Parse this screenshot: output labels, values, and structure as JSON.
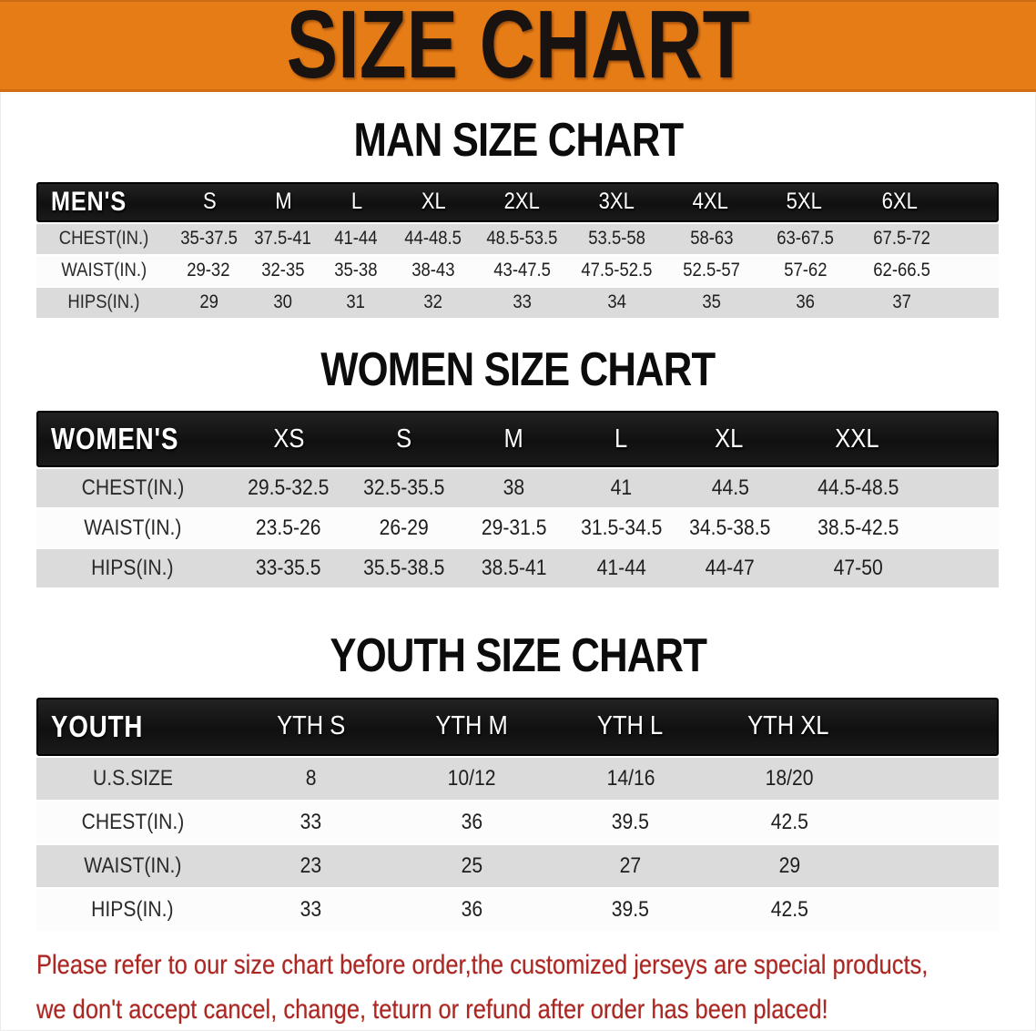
{
  "banner": {
    "title": "SIZE CHART",
    "bg_color": "#E67C16",
    "text_color": "#181310"
  },
  "sections": [
    {
      "title": "MAN SIZE CHART",
      "group_label": "MEN'S",
      "columns": [
        "S",
        "M",
        "L",
        "XL",
        "2XL",
        "3XL",
        "4XL",
        "5XL",
        "6XL"
      ],
      "rows": [
        {
          "label": "CHEST(IN.)",
          "values": [
            "35-37.5",
            "37.5-41",
            "41-44",
            "44-48.5",
            "48.5-53.5",
            "53.5-58",
            "58-63",
            "63-67.5",
            "67.5-72"
          ]
        },
        {
          "label": "WAIST(IN.)",
          "values": [
            "29-32",
            "32-35",
            "35-38",
            "38-43",
            "43-47.5",
            "47.5-52.5",
            "52.5-57",
            "57-62",
            "62-66.5"
          ]
        },
        {
          "label": "HIPS(IN.)",
          "values": [
            "29",
            "30",
            "31",
            "32",
            "33",
            "34",
            "35",
            "36",
            "37"
          ]
        }
      ]
    },
    {
      "title": "WOMEN SIZE CHART",
      "group_label": "WOMEN'S",
      "columns": [
        "XS",
        "S",
        "M",
        "L",
        "XL",
        "XXL"
      ],
      "rows": [
        {
          "label": "CHEST(IN.)",
          "values": [
            "29.5-32.5",
            "32.5-35.5",
            "38",
            "41",
            "44.5",
            "44.5-48.5"
          ]
        },
        {
          "label": "WAIST(IN.)",
          "values": [
            "23.5-26",
            "26-29",
            "29-31.5",
            "31.5-34.5",
            "34.5-38.5",
            "38.5-42.5"
          ]
        },
        {
          "label": "HIPS(IN.)",
          "values": [
            "33-35.5",
            "35.5-38.5",
            "38.5-41",
            "41-44",
            "44-47",
            "47-50"
          ]
        }
      ]
    },
    {
      "title": "YOUTH SIZE CHART",
      "group_label": "YOUTH",
      "columns": [
        "YTH S",
        "YTH M",
        "YTH L",
        "YTH XL"
      ],
      "rows": [
        {
          "label": "U.S.SIZE",
          "values": [
            "8",
            "10/12",
            "14/16",
            "18/20"
          ]
        },
        {
          "label": "CHEST(IN.)",
          "values": [
            "33",
            "36",
            "39.5",
            "42.5"
          ]
        },
        {
          "label": "WAIST(IN.)",
          "values": [
            "23",
            "25",
            "27",
            "29"
          ]
        },
        {
          "label": "HIPS(IN.)",
          "values": [
            "33",
            "36",
            "39.5",
            "42.5"
          ]
        }
      ]
    }
  ],
  "footnote": {
    "line1": "Please refer to our size chart before order,the customized jerseys are special products,",
    "line2": "we don't accept cancel, change, teturn or refund after order has been placed!",
    "color": "#AC2622"
  },
  "colors": {
    "header_bar_bg": "#141414",
    "row_alt_bg": "#DBDBDB",
    "row_bg": "#FCFCFC"
  }
}
